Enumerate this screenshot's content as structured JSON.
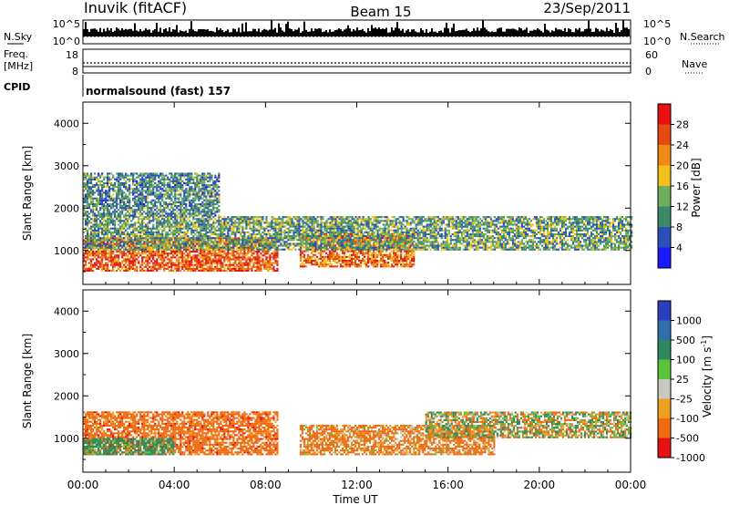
{
  "header": {
    "radar": "Inuvik (fitACF)",
    "beam": "Beam 15",
    "date": "23/Sep/2011"
  },
  "noise_panel": {
    "left_label": "N.Sky",
    "right_label": "N.Search",
    "left_ticks": [
      "10^5",
      "10^0"
    ],
    "right_ticks": [
      "10^5",
      "10^0"
    ]
  },
  "freq_panel": {
    "left_label_line1": "Freq.",
    "left_label_line2": "[MHz]",
    "right_label": "Nave",
    "left_ticks": [
      "18",
      "8"
    ],
    "right_ticks": [
      "60",
      "0"
    ]
  },
  "cpid": {
    "label": "CPID",
    "value": "normalsound (fast) 157"
  },
  "x_axis": {
    "label": "Time UT",
    "ticks": [
      "00:00",
      "04:00",
      "08:00",
      "12:00",
      "16:00",
      "20:00",
      "00:00"
    ]
  },
  "chart_data": [
    {
      "type": "heatmap",
      "title": "Power",
      "xlabel": "Time UT",
      "ylabel": "Slant Range [km]",
      "x_ticks": [
        "00:00",
        "04:00",
        "08:00",
        "12:00",
        "16:00",
        "20:00",
        "00:00"
      ],
      "y_ticks": [
        1000,
        2000,
        3000,
        4000
      ],
      "ylim": [
        200,
        4500
      ],
      "colorbar": {
        "label": "Power [dB]",
        "ticks": [
          "4",
          "8",
          "12",
          "16",
          "20",
          "24",
          "28"
        ],
        "range": [
          0,
          32
        ],
        "colors": [
          "#1a1aff",
          "#2a4fb5",
          "#3a8a6a",
          "#6fae5a",
          "#f2c21a",
          "#f08a14",
          "#e64a10",
          "#e81010"
        ]
      },
      "features": [
        {
          "from": "00:00",
          "to": "08:30",
          "range_km": [
            500,
            1300
          ],
          "value": 26
        },
        {
          "from": "09:30",
          "to": "14:30",
          "range_km": [
            600,
            1400
          ],
          "value": 24
        },
        {
          "from": "00:00",
          "to": "24:00",
          "range_km": [
            1000,
            1800
          ],
          "value": 12
        },
        {
          "from": "00:00",
          "to": "06:00",
          "range_km": [
            1800,
            2800
          ],
          "value": 10
        }
      ]
    },
    {
      "type": "heatmap",
      "title": "Velocity",
      "xlabel": "Time UT",
      "ylabel": "Slant Range [km]",
      "x_ticks": [
        "00:00",
        "04:00",
        "08:00",
        "12:00",
        "16:00",
        "20:00",
        "00:00"
      ],
      "y_ticks": [
        1000,
        2000,
        3000,
        4000
      ],
      "ylim": [
        200,
        4500
      ],
      "colorbar": {
        "label": "Velocity [m s^-1]",
        "ticks": [
          "1000",
          "500",
          "100",
          "25",
          "-25",
          "-100",
          "-500",
          "-1000"
        ],
        "colors": [
          "#2a3fc0",
          "#2e6fae",
          "#2e8a5e",
          "#5cc43a",
          "#c8c8c0",
          "#f0a020",
          "#f06a10",
          "#e81010"
        ]
      },
      "features": [
        {
          "from": "00:00",
          "to": "08:30",
          "range_km": [
            600,
            1600
          ],
          "value": -300
        },
        {
          "from": "09:30",
          "to": "18:00",
          "range_km": [
            600,
            1300
          ],
          "value": -200
        },
        {
          "from": "15:00",
          "to": "24:00",
          "range_km": [
            1000,
            1600
          ],
          "value": 0
        },
        {
          "from": "00:00",
          "to": "04:00",
          "range_km": [
            600,
            1000
          ],
          "value": 200
        }
      ]
    }
  ]
}
